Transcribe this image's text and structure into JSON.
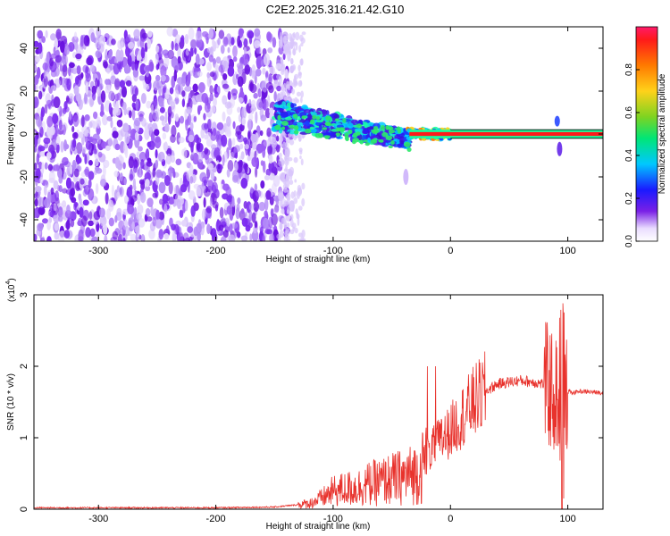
{
  "title": "C2E2.2025.316.21.42.G10",
  "colors": {
    "line": "#e8322c",
    "frame": "#000000",
    "spectrum_low": "#6a12e0",
    "spectrum_mid": "#12d0ff",
    "spectrum_high": "#ff1e1e"
  },
  "chart_data": [
    {
      "type": "heatmap",
      "xlabel": "Height of straight line (km)",
      "ylabel": "Frequency (Hz)",
      "xlim": [
        -355,
        130
      ],
      "ylim": [
        -50,
        50
      ],
      "xticks": [
        -300,
        -200,
        -100,
        0,
        100
      ],
      "xtick_labels": [
        "-300",
        "-200",
        "-100",
        "0",
        "100"
      ],
      "yticks": [
        -40,
        -20,
        0,
        20,
        40
      ],
      "ytick_labels": [
        "-40",
        "-20",
        "0",
        "20",
        "40"
      ],
      "colorbar": {
        "label": "Normalized spectral amplitude",
        "range": [
          0,
          1
        ],
        "ticks": [
          0.0,
          0.2,
          0.4,
          0.6,
          0.8
        ],
        "tick_labels": [
          "0.0",
          "0.2",
          "0.4",
          "0.6",
          "0.8"
        ],
        "colormap": "rainbow"
      },
      "regions": [
        {
          "name": "noise",
          "x": [
            -355,
            -135
          ],
          "y": [
            -50,
            48
          ],
          "amplitude": 0.05
        },
        {
          "name": "ionospheric signal",
          "x": [
            -150,
            -35
          ],
          "y": [
            -8,
            15
          ],
          "amplitude": 0.3
        },
        {
          "name": "carrier line",
          "x": [
            -35,
            130
          ],
          "y": [
            -1,
            1
          ],
          "amplitude": 0.95
        }
      ]
    },
    {
      "type": "line",
      "xlabel": "Height of straight line (km)",
      "ylabel": "SNR (10 * v/v)",
      "y_multiplier": "(x10",
      "y_exponent": "4",
      "xlim": [
        -355,
        130
      ],
      "ylim": [
        0,
        3
      ],
      "xticks": [
        -300,
        -200,
        -100,
        0,
        100
      ],
      "xtick_labels": [
        "-300",
        "-200",
        "-100",
        "0",
        "100"
      ],
      "yticks": [
        0,
        1,
        2,
        3
      ],
      "ytick_labels": [
        "0",
        "1",
        "2",
        "3"
      ],
      "series": [
        {
          "x": [
            -355,
            -300,
            -250,
            -200,
            -150,
            -120,
            -110,
            -100,
            -90,
            -80,
            -70,
            -60,
            -50,
            -40,
            -30,
            -25,
            -20,
            -15,
            -10,
            -5,
            0,
            10,
            20,
            30,
            40,
            50,
            60,
            70,
            80,
            85,
            90,
            93,
            95,
            97,
            98,
            100,
            105,
            110,
            120,
            130
          ],
          "y": [
            0.02,
            0.02,
            0.02,
            0.02,
            0.03,
            0.08,
            0.15,
            0.25,
            0.28,
            0.3,
            0.35,
            0.38,
            0.42,
            0.45,
            0.5,
            0.55,
            0.75,
            0.85,
            0.95,
            1.0,
            1.1,
            1.3,
            1.5,
            1.65,
            1.75,
            1.78,
            1.8,
            1.78,
            1.75,
            1.7,
            1.6,
            1.5,
            0.15,
            1.9,
            1.7,
            1.65,
            1.63,
            1.65,
            1.64,
            1.63
          ]
        }
      ]
    }
  ]
}
